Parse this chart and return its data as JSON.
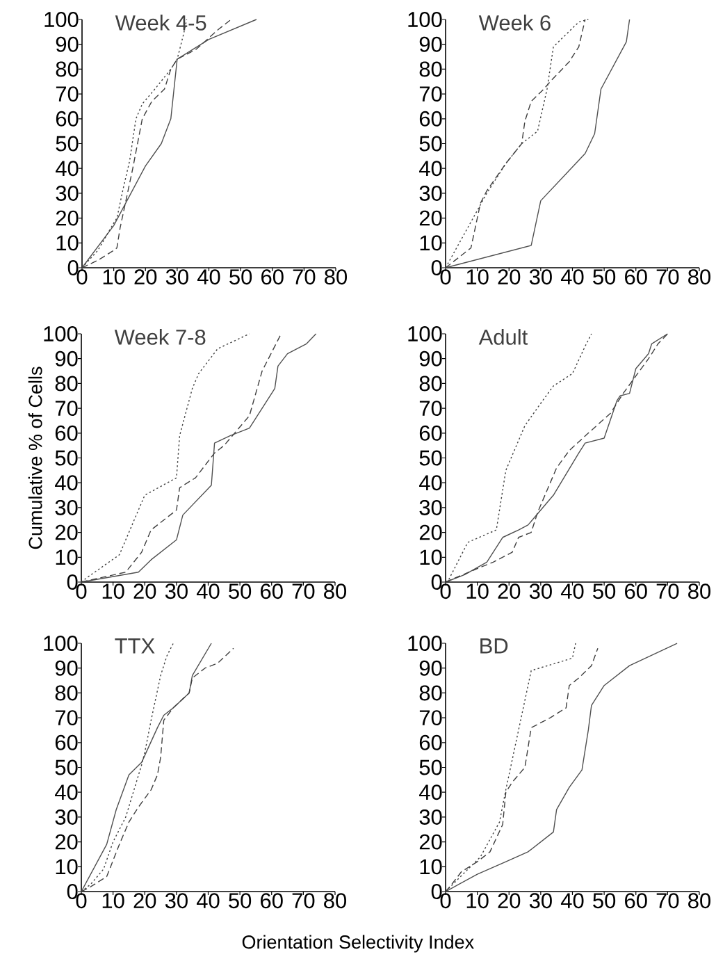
{
  "chart_data": [
    {
      "type": "line",
      "title": "Week 4-5",
      "xlim": [
        0,
        80
      ],
      "ylim": [
        0,
        100
      ],
      "xticks": [
        0,
        10,
        20,
        30,
        40,
        50,
        60,
        70,
        80
      ],
      "yticks": [
        0,
        10,
        20,
        30,
        40,
        50,
        60,
        70,
        80,
        90,
        100
      ],
      "series": [
        {
          "color": "#505050",
          "line_style": "solid",
          "x": [
            0,
            10,
            20,
            25,
            28,
            30,
            40,
            55
          ],
          "values": [
            0,
            17,
            41,
            50,
            60,
            84,
            92,
            100
          ]
        },
        {
          "color": "#404040",
          "line_style": "dashed",
          "x": [
            0,
            5,
            10,
            11,
            12,
            14,
            16,
            19,
            22,
            26,
            28,
            30,
            33,
            36,
            43,
            47
          ],
          "values": [
            0,
            3,
            7,
            8,
            16,
            28,
            40,
            60,
            67,
            72,
            80,
            84,
            86,
            88,
            96,
            100
          ]
        },
        {
          "color": "#404040",
          "line_style": "dotted",
          "x": [
            0,
            5,
            10,
            11,
            13,
            15,
            17,
            19,
            23,
            28,
            30,
            32,
            33
          ],
          "values": [
            0,
            7,
            18,
            20,
            32,
            43,
            60,
            66,
            72,
            80,
            84,
            94,
            100
          ]
        }
      ]
    },
    {
      "type": "line",
      "title": "Week 6",
      "xlim": [
        0,
        80
      ],
      "ylim": [
        0,
        100
      ],
      "xticks": [
        0,
        10,
        20,
        30,
        40,
        50,
        60,
        70,
        80
      ],
      "yticks": [
        0,
        10,
        20,
        30,
        40,
        50,
        60,
        70,
        80,
        90,
        100
      ],
      "series": [
        {
          "color": "#505050",
          "line_style": "solid",
          "x": [
            0,
            27,
            30,
            44,
            47,
            49,
            57,
            58
          ],
          "values": [
            0,
            9,
            27,
            46,
            54,
            72,
            91,
            100
          ]
        },
        {
          "color": "#404040",
          "line_style": "dashed",
          "x": [
            0,
            8,
            11,
            13,
            19,
            24,
            25,
            27,
            31,
            33,
            39,
            42,
            44
          ],
          "values": [
            0,
            8,
            26,
            31,
            42,
            50,
            59,
            67,
            72,
            75,
            83,
            89,
            100
          ]
        },
        {
          "color": "#404040",
          "line_style": "dotted",
          "x": [
            0,
            13,
            19,
            24,
            29,
            32,
            34,
            42,
            45
          ],
          "values": [
            0,
            30,
            42,
            50,
            55,
            72,
            89,
            99,
            100
          ]
        }
      ]
    },
    {
      "type": "line",
      "title": "Week 7-8",
      "ylabel": "Cumulative % of Cells",
      "xlim": [
        0,
        80
      ],
      "ylim": [
        0,
        100
      ],
      "xticks": [
        0,
        10,
        20,
        30,
        40,
        50,
        60,
        70,
        80
      ],
      "yticks": [
        0,
        10,
        20,
        30,
        40,
        50,
        60,
        70,
        80,
        90,
        100
      ],
      "series": [
        {
          "color": "#505050",
          "line_style": "solid",
          "x": [
            0,
            18,
            22,
            30,
            32,
            41,
            42,
            47,
            53,
            61,
            62,
            65,
            71,
            74
          ],
          "values": [
            0,
            4,
            9,
            17,
            27,
            39,
            56,
            59,
            62,
            78,
            87,
            92,
            96,
            100
          ]
        },
        {
          "color": "#404040",
          "line_style": "dashed",
          "x": [
            0,
            14,
            19,
            22,
            30,
            31,
            36,
            42,
            45,
            53,
            57,
            63
          ],
          "values": [
            0,
            4,
            12,
            21,
            29,
            38,
            42,
            52,
            55,
            67,
            85,
            100
          ]
        },
        {
          "color": "#404040",
          "line_style": "dotted",
          "x": [
            0,
            2,
            12,
            20,
            30,
            31,
            35,
            37,
            43,
            53
          ],
          "values": [
            0,
            2,
            11,
            35,
            42,
            59,
            78,
            84,
            94,
            100
          ]
        }
      ]
    },
    {
      "type": "line",
      "title": "Adult",
      "xlim": [
        0,
        80
      ],
      "ylim": [
        0,
        100
      ],
      "xticks": [
        0,
        10,
        20,
        30,
        40,
        50,
        60,
        70,
        80
      ],
      "yticks": [
        0,
        10,
        20,
        30,
        40,
        50,
        60,
        70,
        80,
        90,
        100
      ],
      "series": [
        {
          "color": "#505050",
          "line_style": "solid",
          "x": [
            0,
            6,
            13,
            18,
            23,
            26,
            34,
            42,
            44,
            50,
            54,
            55,
            58,
            60,
            64,
            65,
            70
          ],
          "values": [
            0,
            3,
            8,
            18,
            21,
            23,
            35,
            52,
            56,
            58,
            73,
            75,
            76,
            86,
            92,
            96,
            100
          ]
        },
        {
          "color": "#404040",
          "line_style": "dashed",
          "x": [
            0,
            11,
            15,
            21,
            23,
            27,
            29,
            35,
            39,
            45,
            52,
            56,
            60,
            64,
            67,
            70
          ],
          "values": [
            0,
            6,
            8,
            12,
            18,
            20,
            28,
            46,
            53,
            60,
            68,
            76,
            83,
            90,
            96,
            100
          ]
        },
        {
          "color": "#404040",
          "line_style": "dotted",
          "x": [
            0,
            1,
            7,
            16,
            19,
            25,
            30,
            34,
            40,
            44,
            46
          ],
          "values": [
            0,
            1,
            16,
            21,
            45,
            63,
            72,
            79,
            84,
            95,
            100
          ]
        }
      ]
    },
    {
      "type": "line",
      "title": "TTX",
      "xlabel": "Orientation Selectivity Index",
      "xlim": [
        0,
        80
      ],
      "ylim": [
        0,
        100
      ],
      "xticks": [
        0,
        10,
        20,
        30,
        40,
        50,
        60,
        70,
        80
      ],
      "yticks": [
        0,
        10,
        20,
        30,
        40,
        50,
        60,
        70,
        80,
        90,
        100
      ],
      "series": [
        {
          "color": "#505050",
          "line_style": "solid",
          "x": [
            0,
            8,
            11,
            15,
            19,
            24,
            26,
            29,
            34,
            35,
            41
          ],
          "values": [
            0,
            19,
            33,
            47,
            52,
            66,
            71,
            74,
            80,
            87,
            100
          ]
        },
        {
          "color": "#404040",
          "line_style": "dashed",
          "x": [
            0,
            3,
            8,
            12,
            15,
            18,
            22,
            24,
            25,
            26,
            29,
            34,
            35,
            39,
            43,
            48
          ],
          "values": [
            0,
            2,
            6,
            19,
            28,
            34,
            41,
            47,
            54,
            69,
            74,
            80,
            86,
            90,
            92,
            98
          ]
        },
        {
          "color": "#404040",
          "line_style": "dotted",
          "x": [
            0,
            3,
            7,
            10,
            14,
            19,
            20,
            22,
            25,
            27,
            29
          ],
          "values": [
            0,
            3,
            9,
            20,
            30,
            51,
            56,
            69,
            87,
            95,
            100
          ]
        }
      ]
    },
    {
      "type": "line",
      "title": "BD",
      "xlim": [
        0,
        80
      ],
      "ylim": [
        0,
        100
      ],
      "xticks": [
        0,
        10,
        20,
        30,
        40,
        50,
        60,
        70,
        80
      ],
      "yticks": [
        0,
        10,
        20,
        30,
        40,
        50,
        60,
        70,
        80,
        90,
        100
      ],
      "series": [
        {
          "color": "#505050",
          "line_style": "solid",
          "x": [
            0,
            10,
            19,
            26,
            34,
            35,
            39,
            43,
            45,
            46,
            50,
            58,
            73
          ],
          "values": [
            0,
            7,
            12,
            16,
            24,
            33,
            42,
            49,
            65,
            75,
            83,
            91,
            100
          ]
        },
        {
          "color": "#404040",
          "line_style": "dashed",
          "x": [
            0,
            2,
            5,
            10,
            14,
            18,
            19,
            21,
            25,
            27,
            33,
            38,
            39,
            42,
            46,
            48
          ],
          "values": [
            0,
            3,
            8,
            12,
            16,
            27,
            40,
            44,
            50,
            66,
            70,
            74,
            83,
            86,
            91,
            98
          ]
        },
        {
          "color": "#404040",
          "line_style": "dotted",
          "x": [
            0,
            11,
            17,
            19,
            27,
            40,
            41
          ],
          "values": [
            0,
            14,
            28,
            41,
            89,
            94,
            100
          ]
        }
      ]
    }
  ]
}
